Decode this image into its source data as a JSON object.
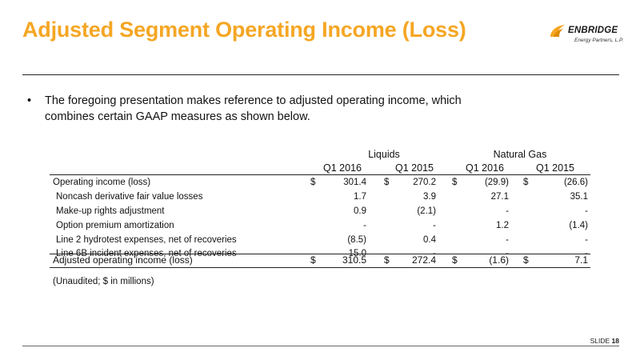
{
  "title": "Adjusted Segment Operating Income (Loss)",
  "logo": {
    "name": "ENBRIDGE",
    "sub": "Energy Partners, L.P.",
    "icon": "enbridge-flame-icon",
    "accent": "#f5a623"
  },
  "bullet": {
    "glyph": "•",
    "text": "The foregoing presentation makes reference to adjusted operating income, which combines certain GAAP measures as shown below."
  },
  "table": {
    "groups": [
      "Liquids",
      "Natural Gas"
    ],
    "columns": [
      "Q1 2016",
      "Q1 2015",
      "Q1 2016",
      "Q1 2015"
    ],
    "currency": "$",
    "rows": [
      {
        "label": "Operating income (loss)",
        "values": [
          "301.4",
          "270.2",
          "(29.9)",
          "(26.6)"
        ],
        "dollar": true
      },
      {
        "label": "Noncash derivative fair value losses",
        "values": [
          "1.7",
          "3.9",
          "27.1",
          "35.1"
        ],
        "dollar": false
      },
      {
        "label": "Make-up rights adjustment",
        "values": [
          "0.9",
          "(2.1)",
          "-",
          "-"
        ],
        "dollar": false
      },
      {
        "label": "Option premium amortization",
        "values": [
          "-",
          "-",
          "1.2",
          "(1.4)"
        ],
        "dollar": false
      },
      {
        "label": "Line 2 hydrotest expenses, net of recoveries",
        "values": [
          "(8.5)",
          "0.4",
          "-",
          "-"
        ],
        "dollar": false
      },
      {
        "label": "Line 6B incident expenses, net of recoveries",
        "values": [
          "15.0",
          "-",
          "-",
          "-"
        ],
        "dollar": false
      }
    ],
    "total": {
      "label": "Adjusted operating income (loss)",
      "values": [
        "310.5",
        "272.4",
        "(1.6)",
        "7.1"
      ]
    },
    "note": "(Unaudited; $ in millions)"
  },
  "footer": {
    "slide_label": "SLIDE",
    "slide_number": "18"
  }
}
